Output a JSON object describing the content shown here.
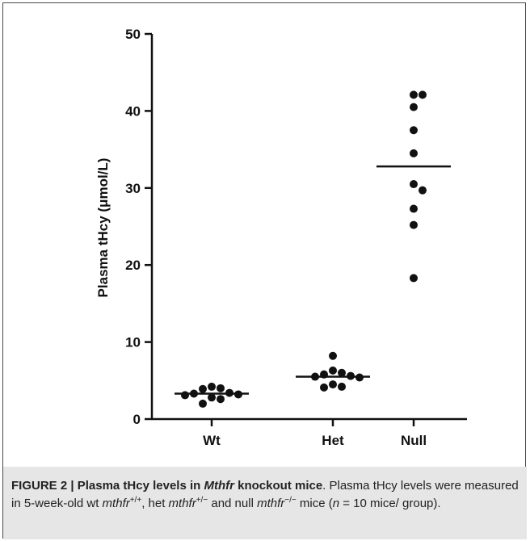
{
  "chart_data": {
    "type": "scatter",
    "ylabel": "Plasma tHcy (μmol/L)",
    "xlabel": "",
    "title": "",
    "ylim": [
      0,
      50
    ],
    "yticks": [
      0,
      10,
      20,
      30,
      40,
      50
    ],
    "categories": [
      "Wt",
      "Het",
      "Null"
    ],
    "groups": [
      {
        "category": "Wt",
        "mean": 3.3,
        "values": [
          4.2,
          3.9,
          4.0,
          3.3,
          3.4,
          3.2,
          3.1,
          2.8,
          2.6,
          2.0
        ]
      },
      {
        "category": "Het",
        "mean": 5.5,
        "values": [
          8.2,
          6.3,
          6.0,
          5.8,
          5.6,
          5.5,
          5.4,
          4.5,
          4.2,
          4.1
        ]
      },
      {
        "category": "Null",
        "mean": 32.8,
        "values": [
          42.1,
          42.1,
          40.5,
          37.5,
          34.5,
          30.5,
          29.7,
          27.3,
          25.2,
          18.3
        ]
      }
    ],
    "grid": false,
    "legend": "none"
  },
  "colors": {
    "points": "#111111",
    "axes": "#111111",
    "frame": "#4a4a4a",
    "caption_bg": "#e6e6e6"
  },
  "caption": {
    "figure_label": "FIGURE 2 | Plasma tHcy levels in ",
    "gene": "Mthfr",
    "title_rest": " knockout mice",
    "text_1": ". Plasma tHcy levels were measured in 5-week-old wt ",
    "wt_gene": "mthfr",
    "wt_sup": "+/+",
    "text_2": ", het ",
    "het_gene": "mthfr",
    "het_sup": "+/−",
    "text_3": " and null ",
    "null_gene": "mthfr",
    "null_sup": "−/−",
    "text_4": " mice (",
    "n_symbol": "n",
    "text_5": " = 10 mice/ group)."
  }
}
